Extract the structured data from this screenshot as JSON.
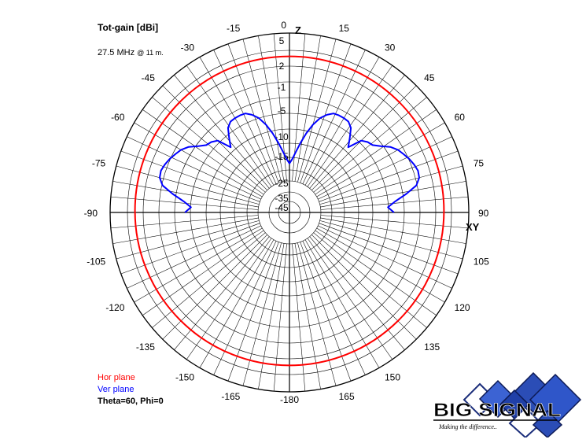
{
  "header": {
    "title": "Tot-gain [dBi]",
    "frequency": "27.5 MHz",
    "height": "@ 11 m."
  },
  "legend": {
    "hor": "Hor plane",
    "ver": "Ver plane",
    "condition": "Theta=60, Phi=0"
  },
  "logo": {
    "text": "BIG SIGNAL",
    "tagline": "Making the difference..",
    "colors": {
      "blue": "#2b4db6",
      "dark": "#1a2d7a"
    }
  },
  "chart_data": {
    "type": "polar",
    "zenith_label": "Z",
    "horizon_label": "XY",
    "angle_labels": [
      "0",
      "15",
      "30",
      "45",
      "60",
      "75",
      "90",
      "105",
      "120",
      "135",
      "150",
      "165",
      "-180",
      "-165",
      "-150",
      "-135",
      "-120",
      "-105",
      "-90",
      "-75",
      "-60",
      "-45",
      "-30",
      "-15"
    ],
    "radial_labels": [
      "5",
      "2",
      "-1",
      "-5",
      "-10",
      "-15",
      "-25",
      "-35",
      "-45"
    ],
    "grid": true,
    "colors": {
      "hor": "#ff0000",
      "ver": "#0000ff",
      "grid": "#000000"
    },
    "series": [
      {
        "name": "Hor plane",
        "shape": "circle",
        "gain_dbi": 3.2
      },
      {
        "name": "Ver plane",
        "points": [
          [
            -90,
            -3.5
          ],
          [
            -87,
            -4.5
          ],
          [
            -84,
            -3.2
          ],
          [
            -81,
            -1.4
          ],
          [
            -78,
            0.2
          ],
          [
            -75,
            0.8
          ],
          [
            -72,
            0.9
          ],
          [
            -69,
            0.7
          ],
          [
            -66,
            0.4
          ],
          [
            -63,
            0.0
          ],
          [
            -60,
            -0.4
          ],
          [
            -57,
            -1.1
          ],
          [
            -54,
            -2.2
          ],
          [
            -51,
            -3.1
          ],
          [
            -48,
            -3.4
          ],
          [
            -45,
            -4.0
          ],
          [
            -42,
            -6.5
          ],
          [
            -39,
            -5.0
          ],
          [
            -36,
            -3.5
          ],
          [
            -33,
            -2.9
          ],
          [
            -30,
            -2.8
          ],
          [
            -27,
            -2.8
          ],
          [
            -24,
            -2.9
          ],
          [
            -21,
            -3.5
          ],
          [
            -18,
            -4.4
          ],
          [
            -15,
            -5.9
          ],
          [
            -12,
            -7.9
          ],
          [
            -9,
            -10.3
          ],
          [
            -6,
            -12.8
          ],
          [
            -3,
            -15.0
          ],
          [
            0,
            -16.5
          ],
          [
            3,
            -15.0
          ],
          [
            6,
            -12.8
          ],
          [
            9,
            -10.3
          ],
          [
            12,
            -7.9
          ],
          [
            15,
            -5.9
          ],
          [
            18,
            -4.4
          ],
          [
            21,
            -3.5
          ],
          [
            24,
            -2.9
          ],
          [
            27,
            -2.8
          ],
          [
            30,
            -2.8
          ],
          [
            33,
            -2.9
          ],
          [
            36,
            -3.5
          ],
          [
            39,
            -5.0
          ],
          [
            42,
            -6.5
          ],
          [
            45,
            -4.0
          ],
          [
            48,
            -3.4
          ],
          [
            51,
            -3.1
          ],
          [
            54,
            -2.2
          ],
          [
            57,
            -1.1
          ],
          [
            60,
            -0.4
          ],
          [
            63,
            0.0
          ],
          [
            66,
            0.4
          ],
          [
            69,
            0.7
          ],
          [
            72,
            0.9
          ],
          [
            75,
            0.8
          ],
          [
            78,
            0.2
          ],
          [
            81,
            -1.4
          ],
          [
            84,
            -3.2
          ],
          [
            87,
            -4.5
          ],
          [
            90,
            -3.5
          ]
        ]
      }
    ]
  }
}
